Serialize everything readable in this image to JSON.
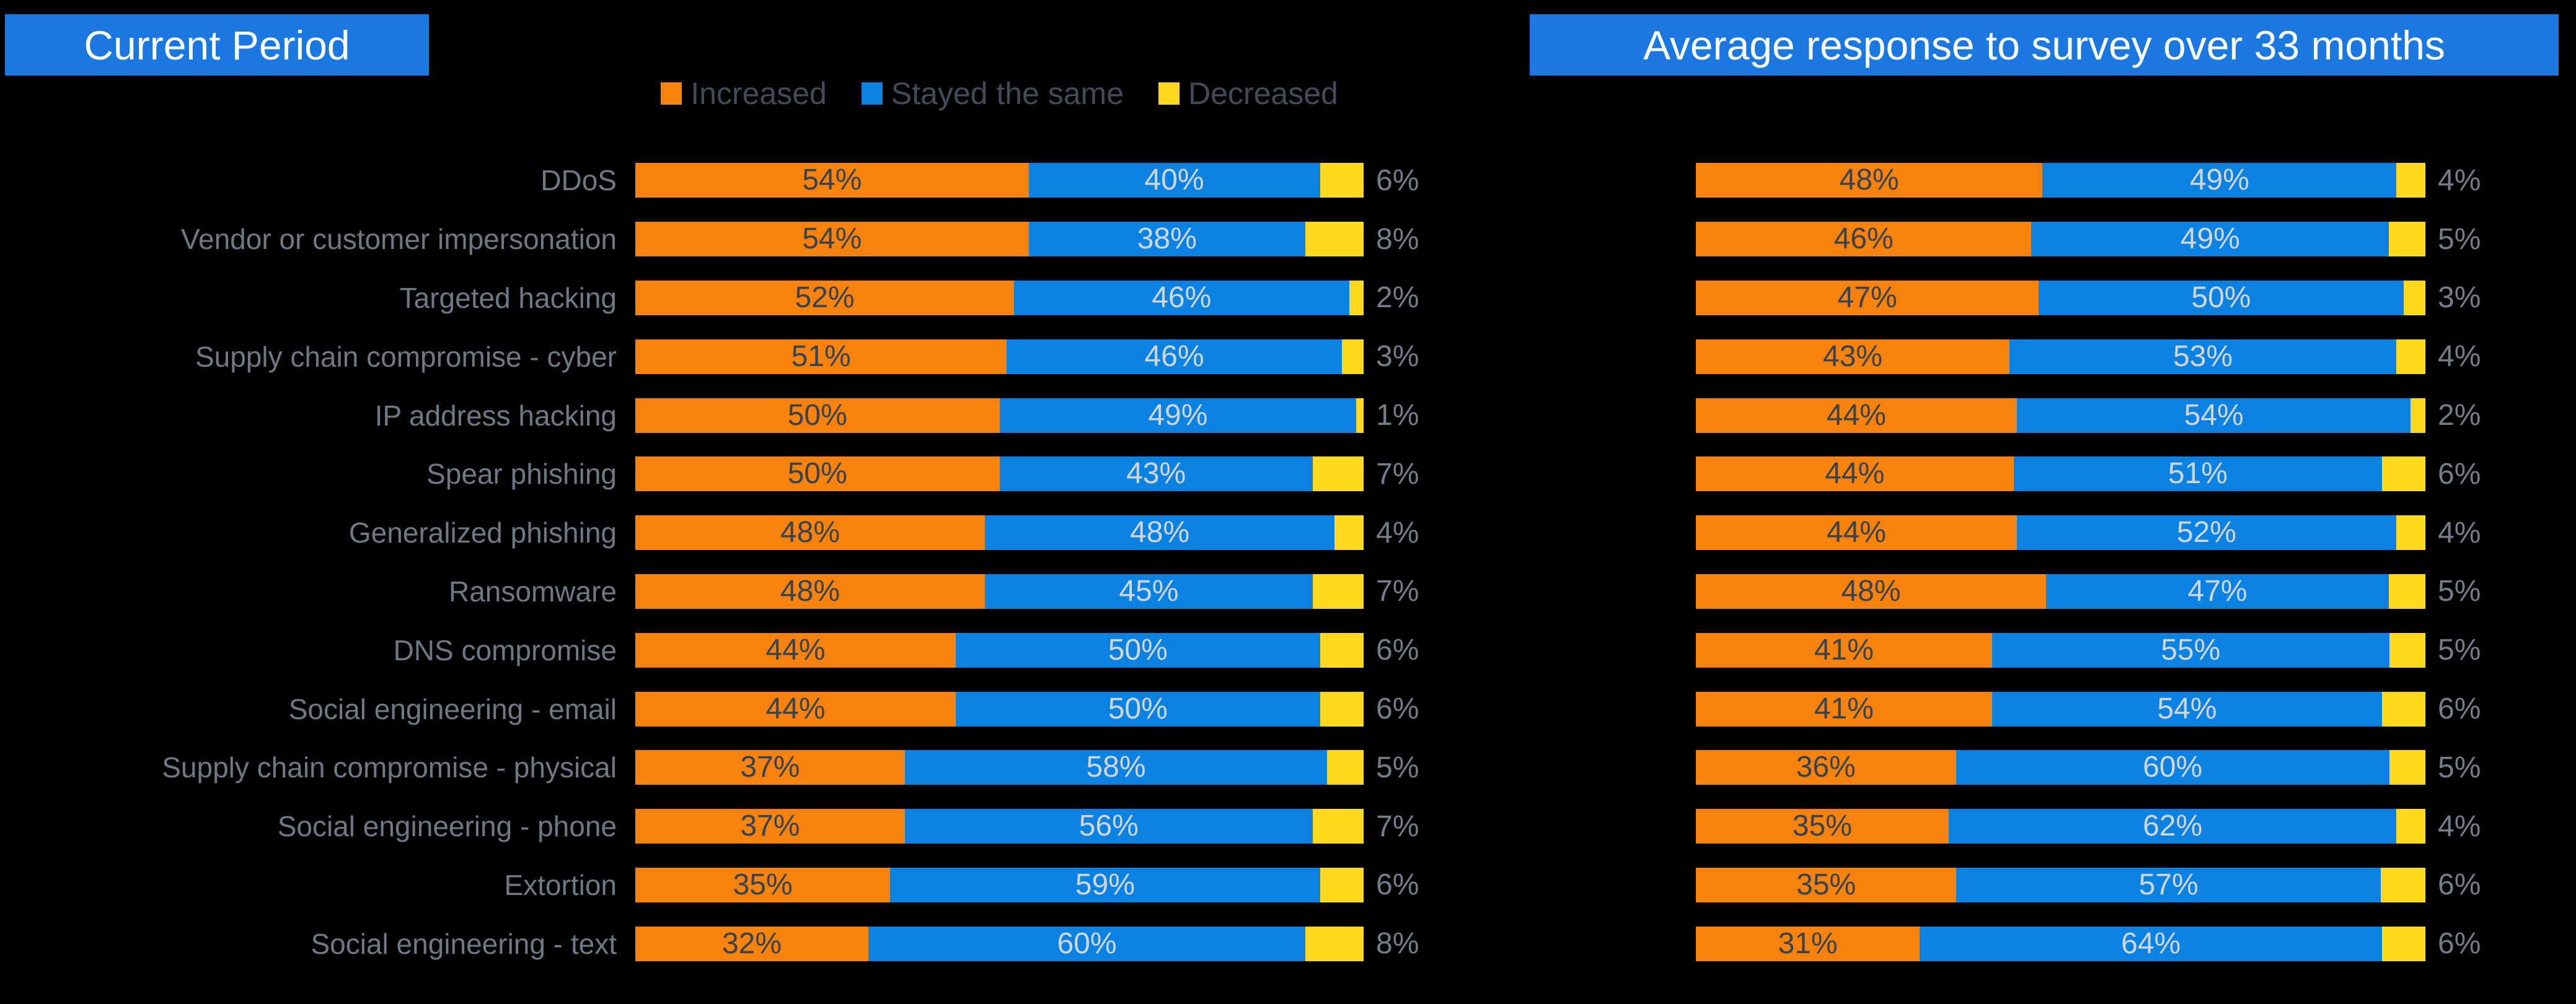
{
  "titles": {
    "left": "Current Period",
    "right": "Average response to survey over 33 months",
    "background_color": "#1B78E0",
    "text_color": "#FFFFFF"
  },
  "legend": {
    "items": [
      {
        "label": "Increased",
        "color": "#F7820D"
      },
      {
        "label": "Stayed the same",
        "color": "#0982E1"
      },
      {
        "label": "Decreased",
        "color": "#FFD91C"
      }
    ],
    "position": "top-center-over-left-chart"
  },
  "colors": {
    "page_background": "#000000",
    "category_label": "#6E7983",
    "outside_value_label": "#747E89",
    "in_bar_label_on_orange": "#39434F",
    "in_bar_label_on_blue": "#D2D6DA"
  },
  "chart_data": [
    {
      "type": "bar",
      "orientation": "horizontal",
      "stacked": true,
      "title": "Current Period",
      "value_format": "percent",
      "axis_range": [
        0,
        100
      ],
      "grid": false,
      "categories": [
        "DDoS",
        "Vendor or customer impersonation",
        "Targeted hacking",
        "Supply chain compromise - cyber",
        "IP address hacking",
        "Spear phishing",
        "Generalized phishing",
        "Ransomware",
        "DNS compromise",
        "Social engineering - email",
        "Supply chain compromise - physical",
        "Social engineering - phone",
        "Extortion",
        "Social engineering - text"
      ],
      "series": [
        {
          "name": "Increased",
          "values": [
            54,
            54,
            52,
            51,
            50,
            50,
            48,
            48,
            44,
            44,
            37,
            37,
            35,
            32
          ]
        },
        {
          "name": "Stayed the same",
          "values": [
            40,
            38,
            46,
            46,
            49,
            43,
            48,
            45,
            50,
            50,
            58,
            56,
            59,
            60
          ]
        },
        {
          "name": "Decreased",
          "values": [
            6,
            8,
            2,
            3,
            1,
            7,
            4,
            7,
            6,
            6,
            5,
            7,
            6,
            8
          ]
        }
      ],
      "label_placement": {
        "increased": "inside",
        "stayed_the_same": "inside",
        "decreased": "outside-right"
      }
    },
    {
      "type": "bar",
      "orientation": "horizontal",
      "stacked": true,
      "title": "Average response to survey over 33 months",
      "value_format": "percent",
      "axis_range": [
        0,
        100
      ],
      "grid": false,
      "categories": [
        "DDoS",
        "Vendor or customer impersonation",
        "Targeted hacking",
        "Supply chain compromise - cyber",
        "IP address hacking",
        "Spear phishing",
        "Generalized phishing",
        "Ransomware",
        "DNS compromise",
        "Social engineering - email",
        "Supply chain compromise - physical",
        "Social engineering - phone",
        "Extortion",
        "Social engineering - text"
      ],
      "series": [
        {
          "name": "Increased",
          "values": [
            48,
            46,
            47,
            43,
            44,
            44,
            44,
            48,
            41,
            41,
            36,
            35,
            35,
            31
          ]
        },
        {
          "name": "Stayed the same",
          "values": [
            49,
            49,
            50,
            53,
            54,
            51,
            52,
            47,
            55,
            54,
            60,
            62,
            57,
            64
          ]
        },
        {
          "name": "Decreased",
          "values": [
            4,
            5,
            3,
            4,
            2,
            6,
            4,
            5,
            5,
            6,
            5,
            4,
            6,
            6
          ]
        }
      ],
      "label_placement": {
        "increased": "inside",
        "stayed_the_same": "inside",
        "decreased": "outside-right"
      }
    }
  ]
}
